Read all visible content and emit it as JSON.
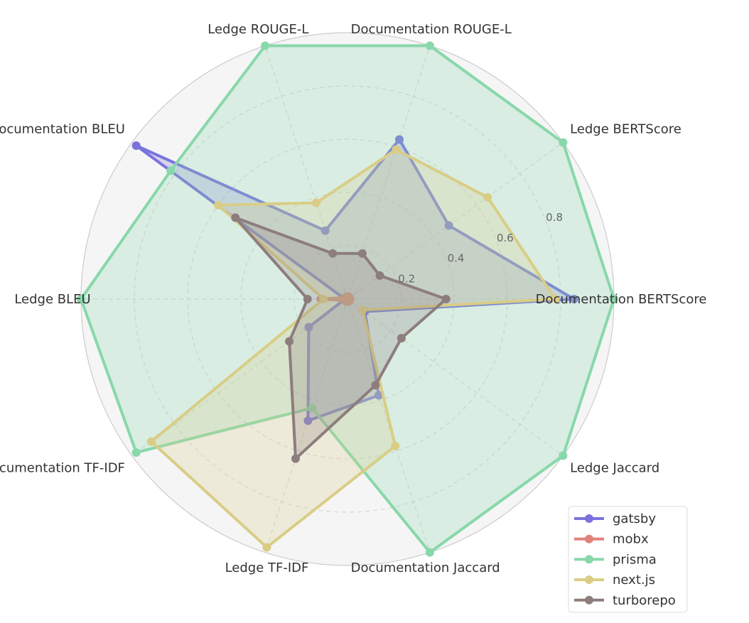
{
  "chart_data": {
    "type": "radar",
    "axes": [
      "Documentation BERTScore",
      "Ledge BERTScore",
      "Documentation ROUGE-L",
      "Ledge ROUGE-L",
      "Documentation BLEU",
      "Ledge BLEU",
      "Documentation TF-IDF",
      "Ledge TF-IDF",
      "Documentation Jaccard",
      "Ledge Jaccard"
    ],
    "rlim": [
      0,
      1
    ],
    "radial_ticks": [
      0.2,
      0.4,
      0.6,
      0.8
    ],
    "radial_tick_labels": [
      "0.2",
      "0.4",
      "0.6",
      "0.8"
    ],
    "grid": true,
    "legend_position": "bottom-right",
    "series": [
      {
        "name": "gatsby",
        "color": "#7b73dc",
        "values": [
          0.85,
          0.47,
          0.63,
          0.27,
          0.98,
          0.01,
          0.18,
          0.48,
          0.38,
          0.08
        ]
      },
      {
        "name": "mobx",
        "color": "#e0837a",
        "values": [
          0.01,
          0.01,
          0.01,
          0.01,
          0.01,
          0.1,
          0.01,
          0.01,
          0.01,
          0.01
        ]
      },
      {
        "name": "prisma",
        "color": "#88d8aa",
        "values": [
          1.0,
          1.0,
          1.0,
          1.0,
          0.82,
          1.0,
          0.98,
          0.43,
          1.0,
          1.0
        ]
      },
      {
        "name": "next.js",
        "color": "#d9cd86",
        "values": [
          0.78,
          0.65,
          0.59,
          0.38,
          0.6,
          0.09,
          0.91,
          0.98,
          0.58,
          0.07
        ]
      },
      {
        "name": "turborepo",
        "color": "#8d7d7d",
        "values": [
          0.37,
          0.15,
          0.18,
          0.18,
          0.52,
          0.15,
          0.27,
          0.63,
          0.34,
          0.25
        ]
      }
    ]
  }
}
